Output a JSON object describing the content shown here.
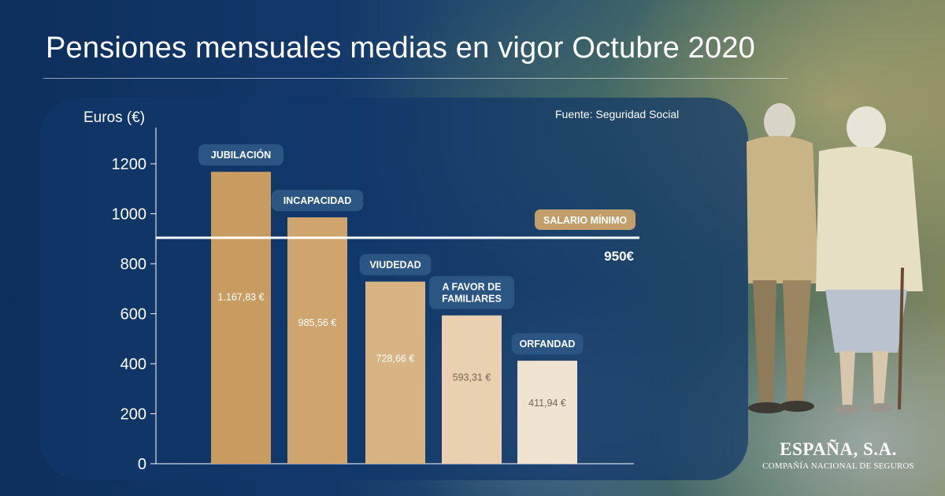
{
  "header": {
    "title": "Pensiones mensuales medias en vigor Octubre 2020",
    "source": "Fuente: Seguridad Social"
  },
  "brand": {
    "name": "ESPAÑA, S.A.",
    "tagline": "COMPAÑÍA NACIONAL DE SEGUROS"
  },
  "chart_data": {
    "type": "bar",
    "title": "Pensiones mensuales medias en vigor Octubre 2020",
    "ylabel": "Euros (€)",
    "xlabel": "",
    "ylim": [
      0,
      1300
    ],
    "yticks": [
      0,
      200,
      400,
      600,
      800,
      1000,
      1200
    ],
    "grid": false,
    "categories": [
      [
        "JUBILACIÓN"
      ],
      [
        "INCAPACIDAD"
      ],
      [
        "VIUDEDAD"
      ],
      [
        "A FAVOR DE",
        "FAMILIARES"
      ],
      [
        "ORFANDAD"
      ]
    ],
    "values": [
      1167.83,
      985.56,
      728.66,
      593.31,
      411.94
    ],
    "value_labels": [
      "1.167,83 €",
      "985,56 €",
      "728,66 €",
      "593,31 €",
      "411,94 €"
    ],
    "bar_colors": [
      "#c89b60",
      "#d0a56d",
      "#d8b383",
      "#e8d0b0",
      "#f0e3d1"
    ],
    "value_label_colors": [
      "#ffffff",
      "#ffffff",
      "#ffffff",
      "#7a6450",
      "#7a6450"
    ],
    "reference_line": {
      "value": 950,
      "label": "SALARIO MÍNIMO",
      "value_label": "950€",
      "label_color": "#c29e6b"
    },
    "label_badge_color": "#2b5683",
    "axis_color": "#ffffff"
  }
}
